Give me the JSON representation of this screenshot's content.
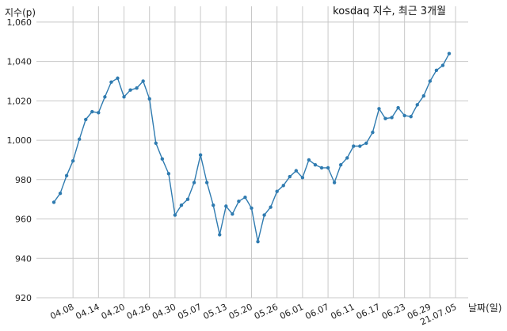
{
  "chart_data": {
    "type": "line",
    "title": "kosdaq 지수, 최근 3개월",
    "ylabel": "지수(p)",
    "xlabel": "날짜(일)",
    "ylim": [
      920,
      1068
    ],
    "yticks": [
      920,
      940,
      960,
      980,
      1000,
      1020,
      1040,
      1060
    ],
    "ytick_labels": [
      "920",
      "940",
      "960",
      "980",
      "1,000",
      "1,020",
      "1,040",
      "1,060"
    ],
    "xticks": [
      {
        "label": "04.08",
        "index": 3
      },
      {
        "label": "04.14",
        "index": 7
      },
      {
        "label": "04.20",
        "index": 11
      },
      {
        "label": "04.26",
        "index": 15
      },
      {
        "label": "04.30",
        "index": 19
      },
      {
        "label": "05.07",
        "index": 23
      },
      {
        "label": "05.13",
        "index": 27
      },
      {
        "label": "05.20",
        "index": 31
      },
      {
        "label": "05.26",
        "index": 35
      },
      {
        "label": "06.01",
        "index": 39
      },
      {
        "label": "06.07",
        "index": 43
      },
      {
        "label": "06.11",
        "index": 47
      },
      {
        "label": "06.17",
        "index": 51
      },
      {
        "label": "06.23",
        "index": 55
      },
      {
        "label": "06.29",
        "index": 59
      },
      {
        "label": "21.07.05",
        "index": 63
      }
    ],
    "grid": true,
    "line_color": "#2f7bb0",
    "series": [
      {
        "values": [
          968.5,
          973,
          982,
          989.5,
          1000.5,
          1010.5,
          1014.5,
          1014,
          1022,
          1029.5,
          1031.5,
          1022,
          1025.5,
          1026.5,
          1030,
          1021,
          998.5,
          990.5,
          983,
          962,
          967,
          970,
          978.5,
          992.5,
          978.5,
          967,
          952,
          966.5,
          962.5,
          969,
          971,
          965.5,
          948.5,
          962,
          966,
          974,
          977,
          981.5,
          984.5,
          981,
          990,
          987.5,
          986,
          986,
          978.5,
          987.5,
          991,
          997,
          997,
          998.5,
          1004,
          1016,
          1011,
          1011.5,
          1016.5,
          1012.5,
          1012,
          1018,
          1022.5,
          1030,
          1035.5,
          1038,
          1044
        ]
      }
    ]
  }
}
